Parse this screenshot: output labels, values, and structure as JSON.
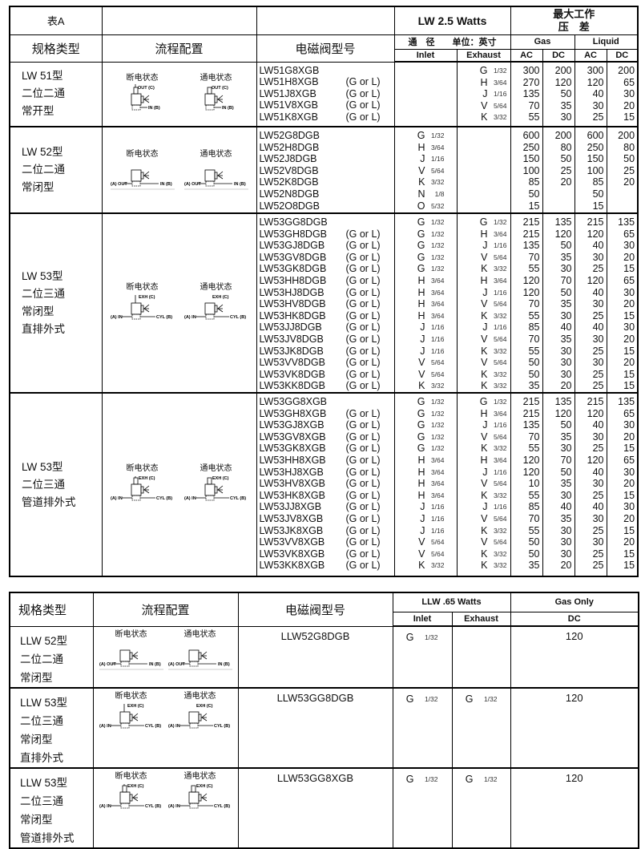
{
  "table_a": {
    "header": {
      "label": "表A",
      "type": "规格类型",
      "flow": "流程配置",
      "model": "电磁阀型号",
      "watts": "LW 2.5 Watts",
      "port_note": "通　径　　单位：英寸",
      "mopd_line1": "最大工作",
      "mopd_line2": "压　差",
      "inlet": "Inlet",
      "exhaust": "Exhaust",
      "gas": "Gas",
      "liquid": "Liquid",
      "ac": "AC",
      "dc": "DC"
    },
    "groups": [
      {
        "type": [
          "LW 51型",
          "二位二通",
          "常开型"
        ],
        "diagram": {
          "kind": "no2",
          "off": "断电状态",
          "on": "通电状态",
          "labels": [
            "OUT (C)",
            "IN (B)"
          ]
        },
        "rows": [
          [
            "LW51G8XGB",
            "",
            "",
            "",
            "G",
            "1/32",
            "300",
            "200",
            "300",
            "200"
          ],
          [
            "LW51H8XGB",
            "(G or L)",
            "",
            "",
            "H",
            "3/64",
            "270",
            "120",
            "120",
            "65"
          ],
          [
            "LW51J8XGB",
            "(G or L)",
            "",
            "",
            "J",
            "1/16",
            "135",
            "50",
            "40",
            "30"
          ],
          [
            "LW51V8XGB",
            "(G or L)",
            "",
            "",
            "V",
            "5/64",
            "70",
            "35",
            "30",
            "20"
          ],
          [
            "LW51K8XGB",
            "(G or L)",
            "",
            "",
            "K",
            "3/32",
            "55",
            "30",
            "25",
            "15"
          ]
        ]
      },
      {
        "type": [
          "LW 52型",
          "二位二通",
          "常闭型"
        ],
        "diagram": {
          "kind": "nc2",
          "off": "断电状态",
          "on": "通电状态",
          "labels": [
            "(A) OUT",
            "IN (B)"
          ]
        },
        "rows": [
          [
            "LW52G8DGB",
            "",
            "G",
            "1/32",
            "",
            "",
            "600",
            "200",
            "600",
            "200"
          ],
          [
            "LW52H8DGB",
            "",
            "H",
            "3/64",
            "",
            "",
            "250",
            "80",
            "250",
            "80"
          ],
          [
            "LW52J8DGB",
            "",
            "J",
            "1/16",
            "",
            "",
            "150",
            "50",
            "150",
            "50"
          ],
          [
            "LW52V8DGB",
            "",
            "V",
            "5/64",
            "",
            "",
            "100",
            "25",
            "100",
            "25"
          ],
          [
            "LW52K8DGB",
            "",
            "K",
            "3/32",
            "",
            "",
            "85",
            "20",
            "85",
            "20"
          ],
          [
            "LW52N8DGB",
            "",
            "N",
            "1/8",
            "",
            "",
            "50",
            "",
            "50",
            ""
          ],
          [
            "LW52O8DGB",
            "",
            "O",
            "5/32",
            "",
            "",
            "15",
            "",
            "15",
            ""
          ]
        ]
      },
      {
        "type": [
          "LW 53型",
          "二位三通",
          "常闭型",
          "直排外式"
        ],
        "diagram": {
          "kind": "nc3",
          "off": "断电状态",
          "on": "通电状态",
          "labels": [
            "EXH (C)",
            "(A) IN",
            "CYL (B)"
          ]
        },
        "rows": [
          [
            "LW53GG8DGB",
            "",
            "G",
            "1/32",
            "G",
            "1/32",
            "215",
            "135",
            "215",
            "135"
          ],
          [
            "LW53GH8DGB",
            "(G or L)",
            "G",
            "1/32",
            "H",
            "3/64",
            "215",
            "120",
            "120",
            "65"
          ],
          [
            "LW53GJ8DGB",
            "(G or L)",
            "G",
            "1/32",
            "J",
            "1/16",
            "135",
            "50",
            "40",
            "30"
          ],
          [
            "LW53GV8DGB",
            "(G or L)",
            "G",
            "1/32",
            "V",
            "5/64",
            "70",
            "35",
            "30",
            "20"
          ],
          [
            "LW53GK8DGB",
            "(G or L)",
            "G",
            "1/32",
            "K",
            "3/32",
            "55",
            "30",
            "25",
            "15"
          ],
          [
            "LW53HH8DGB",
            "(G or L)",
            "H",
            "3/64",
            "H",
            "3/64",
            "120",
            "70",
            "120",
            "65"
          ],
          [
            "LW53HJ8DGB",
            "(G or L)",
            "H",
            "3/64",
            "J",
            "1/16",
            "120",
            "50",
            "40",
            "30"
          ],
          [
            "LW53HV8DGB",
            "(G or L)",
            "H",
            "3/64",
            "V",
            "5/64",
            "70",
            "35",
            "30",
            "20"
          ],
          [
            "LW53HK8DGB",
            "(G or L)",
            "H",
            "3/64",
            "K",
            "3/32",
            "55",
            "30",
            "25",
            "15"
          ],
          [
            "LW53JJ8DGB",
            "(G or L)",
            "J",
            "1/16",
            "J",
            "1/16",
            "85",
            "40",
            "40",
            "30"
          ],
          [
            "LW53JV8DGB",
            "(G or L)",
            "J",
            "1/16",
            "V",
            "5/64",
            "70",
            "35",
            "30",
            "20"
          ],
          [
            "LW53JK8DGB",
            "(G or L)",
            "J",
            "1/16",
            "K",
            "3/32",
            "55",
            "30",
            "25",
            "15"
          ],
          [
            "LW53VV8DGB",
            "(G or L)",
            "V",
            "5/64",
            "V",
            "5/64",
            "50",
            "30",
            "30",
            "20"
          ],
          [
            "LW53VK8DGB",
            "(G or L)",
            "V",
            "5/64",
            "K",
            "3/32",
            "50",
            "30",
            "25",
            "15"
          ],
          [
            "LW53KK8DGB",
            "(G or L)",
            "K",
            "3/32",
            "K",
            "3/32",
            "35",
            "20",
            "25",
            "15"
          ]
        ]
      },
      {
        "type": [
          "LW 53型",
          "二位三通",
          "管道排外式"
        ],
        "diagram": {
          "kind": "nc3p",
          "off": "断电状态",
          "on": "通电状态",
          "labels": [
            "EXH (C)",
            "(A) IN",
            "CYL (B)"
          ]
        },
        "rows": [
          [
            "LW53GG8XGB",
            "",
            "G",
            "1/32",
            "G",
            "1/32",
            "215",
            "135",
            "215",
            "135"
          ],
          [
            "LW53GH8XGB",
            "(G or L)",
            "G",
            "1/32",
            "H",
            "3/64",
            "215",
            "120",
            "120",
            "65"
          ],
          [
            "LW53GJ8XGB",
            "(G or L)",
            "G",
            "1/32",
            "J",
            "1/16",
            "135",
            "50",
            "40",
            "30"
          ],
          [
            "LW53GV8XGB",
            "(G or L)",
            "G",
            "1/32",
            "V",
            "5/64",
            "70",
            "35",
            "30",
            "20"
          ],
          [
            "LW53GK8XGB",
            "(G or L)",
            "G",
            "1/32",
            "K",
            "3/32",
            "55",
            "30",
            "25",
            "15"
          ],
          [
            "LW53HH8XGB",
            "(G or L)",
            "H",
            "3/64",
            "H",
            "3/64",
            "120",
            "70",
            "120",
            "65"
          ],
          [
            "LW53HJ8XGB",
            "(G or L)",
            "H",
            "3/64",
            "J",
            "1/16",
            "120",
            "50",
            "40",
            "30"
          ],
          [
            "LW53HV8XGB",
            "(G or L)",
            "H",
            "3/64",
            "V",
            "5/64",
            "10",
            "35",
            "30",
            "20"
          ],
          [
            "LW53HK8XGB",
            "(G or L)",
            "H",
            "3/64",
            "K",
            "3/32",
            "55",
            "30",
            "25",
            "15"
          ],
          [
            "LW53JJ8XGB",
            "(G or L)",
            "J",
            "1/16",
            "J",
            "1/16",
            "85",
            "40",
            "40",
            "30"
          ],
          [
            "LW53JV8XGB",
            "(G or L)",
            "J",
            "1/16",
            "V",
            "5/64",
            "70",
            "35",
            "30",
            "20"
          ],
          [
            "LW53JK8XGB",
            "(G or L)",
            "J",
            "1/16",
            "K",
            "3/32",
            "55",
            "30",
            "25",
            "15"
          ],
          [
            "LW53VV8XGB",
            "(G or L)",
            "V",
            "5/64",
            "V",
            "5/64",
            "50",
            "30",
            "30",
            "20"
          ],
          [
            "LW53VK8XGB",
            "(G or L)",
            "V",
            "5/64",
            "K",
            "3/32",
            "50",
            "30",
            "25",
            "15"
          ],
          [
            "LW53KK8XGB",
            "(G or L)",
            "K",
            "3/32",
            "K",
            "3/32",
            "35",
            "20",
            "25",
            "15"
          ]
        ]
      }
    ]
  },
  "table_b": {
    "header": {
      "type": "规格类型",
      "flow": "流程配置",
      "model": "电磁阀型号",
      "watts": "LLW .65 Watts",
      "inlet": "Inlet",
      "exhaust": "Exhaust",
      "gas_only": "Gas Only",
      "dc": "DC"
    },
    "groups": [
      {
        "type": [
          "LLW 52型",
          "二位二通",
          "常闭型"
        ],
        "diagram": {
          "kind": "nc2",
          "off": "断电状态",
          "on": "通电状态",
          "labels": [
            "(A) OUT",
            "IN (B)"
          ]
        },
        "row": [
          "LLW52G8DGB",
          "G",
          "1/32",
          "",
          "",
          "120"
        ]
      },
      {
        "type": [
          "LLW 53型",
          "二位三通",
          "常闭型",
          "直排外式"
        ],
        "diagram": {
          "kind": "nc3",
          "off": "断电状态",
          "on": "通电状态",
          "labels": [
            "EXH (C)",
            "(A) IN",
            "CYL (B)"
          ]
        },
        "row": [
          "LLW53GG8DGB",
          "G",
          "1/32",
          "G",
          "1/32",
          "120"
        ]
      },
      {
        "type": [
          "LLW 53型",
          "二位三通",
          "常闭型",
          "管道排外式"
        ],
        "diagram": {
          "kind": "nc3p",
          "off": "断电状态",
          "on": "通电状态",
          "labels": [
            "EXH (C)",
            "(A) IN",
            "CYL (B)"
          ]
        },
        "row": [
          "LLW53GG8XGB",
          "G",
          "1/32",
          "G",
          "1/32",
          "120"
        ]
      }
    ]
  }
}
